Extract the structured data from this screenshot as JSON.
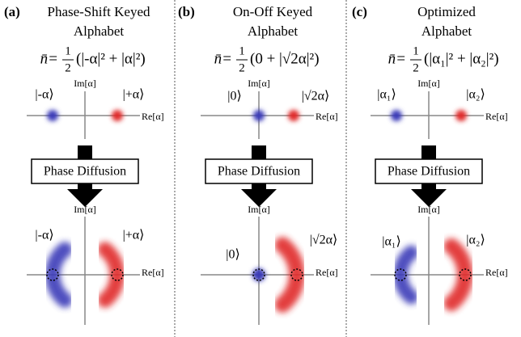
{
  "panels": [
    {
      "label": "(a)",
      "title": [
        "Phase-Shift Keyed",
        "Alphabet"
      ],
      "formula": {
        "lhs": "n̄=",
        "numerator": "1",
        "denominator": "2",
        "rhs": "(|-α|² + |α|²)"
      },
      "im_axis": "Im[α]",
      "re_axis": "Re[α]",
      "states": [
        "|-α⟩",
        "|+α⟩"
      ],
      "process": "Phase Diffusion"
    },
    {
      "label": "(b)",
      "title": [
        "On-Off Keyed",
        "Alphabet"
      ],
      "formula": {
        "lhs": "n̄=",
        "numerator": "1",
        "denominator": "2",
        "rhs": "(0 + |√2α|²)"
      },
      "im_axis": "Im[α]",
      "re_axis": "Re[α]",
      "states": [
        "|0⟩",
        "|√2α⟩"
      ],
      "process": "Phase Diffusion"
    },
    {
      "label": "(c)",
      "title": [
        "Optimized",
        "Alphabet"
      ],
      "formula": {
        "lhs": "n̄=",
        "numerator": "1",
        "denominator": "2",
        "rhs": "(|α₁|² + |α₂|²)"
      },
      "im_axis": "Im[α]",
      "re_axis": "Re[α]",
      "states": [
        "|α₁⟩",
        "|α₂⟩"
      ],
      "process": "Phase Diffusion"
    }
  ]
}
